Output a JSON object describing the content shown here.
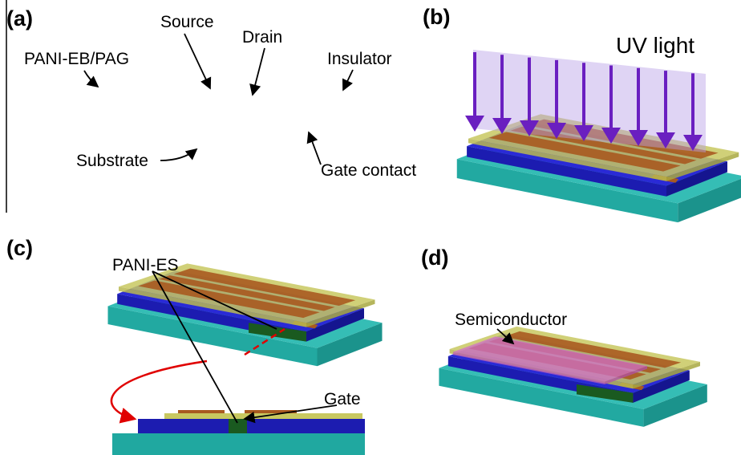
{
  "panels": [
    {
      "label": "(a)",
      "annotations": [
        "Source",
        "Drain",
        "PANI-EB/PAG",
        "Insulator",
        "Substrate",
        "Gate contact"
      ]
    },
    {
      "label": "(b)",
      "annotations": [
        "UV light"
      ]
    },
    {
      "label": "(c)",
      "annotations": [
        "PANI-ES",
        "Gate"
      ]
    },
    {
      "label": "(d)",
      "annotations": [
        "Semiconductor"
      ]
    }
  ]
}
